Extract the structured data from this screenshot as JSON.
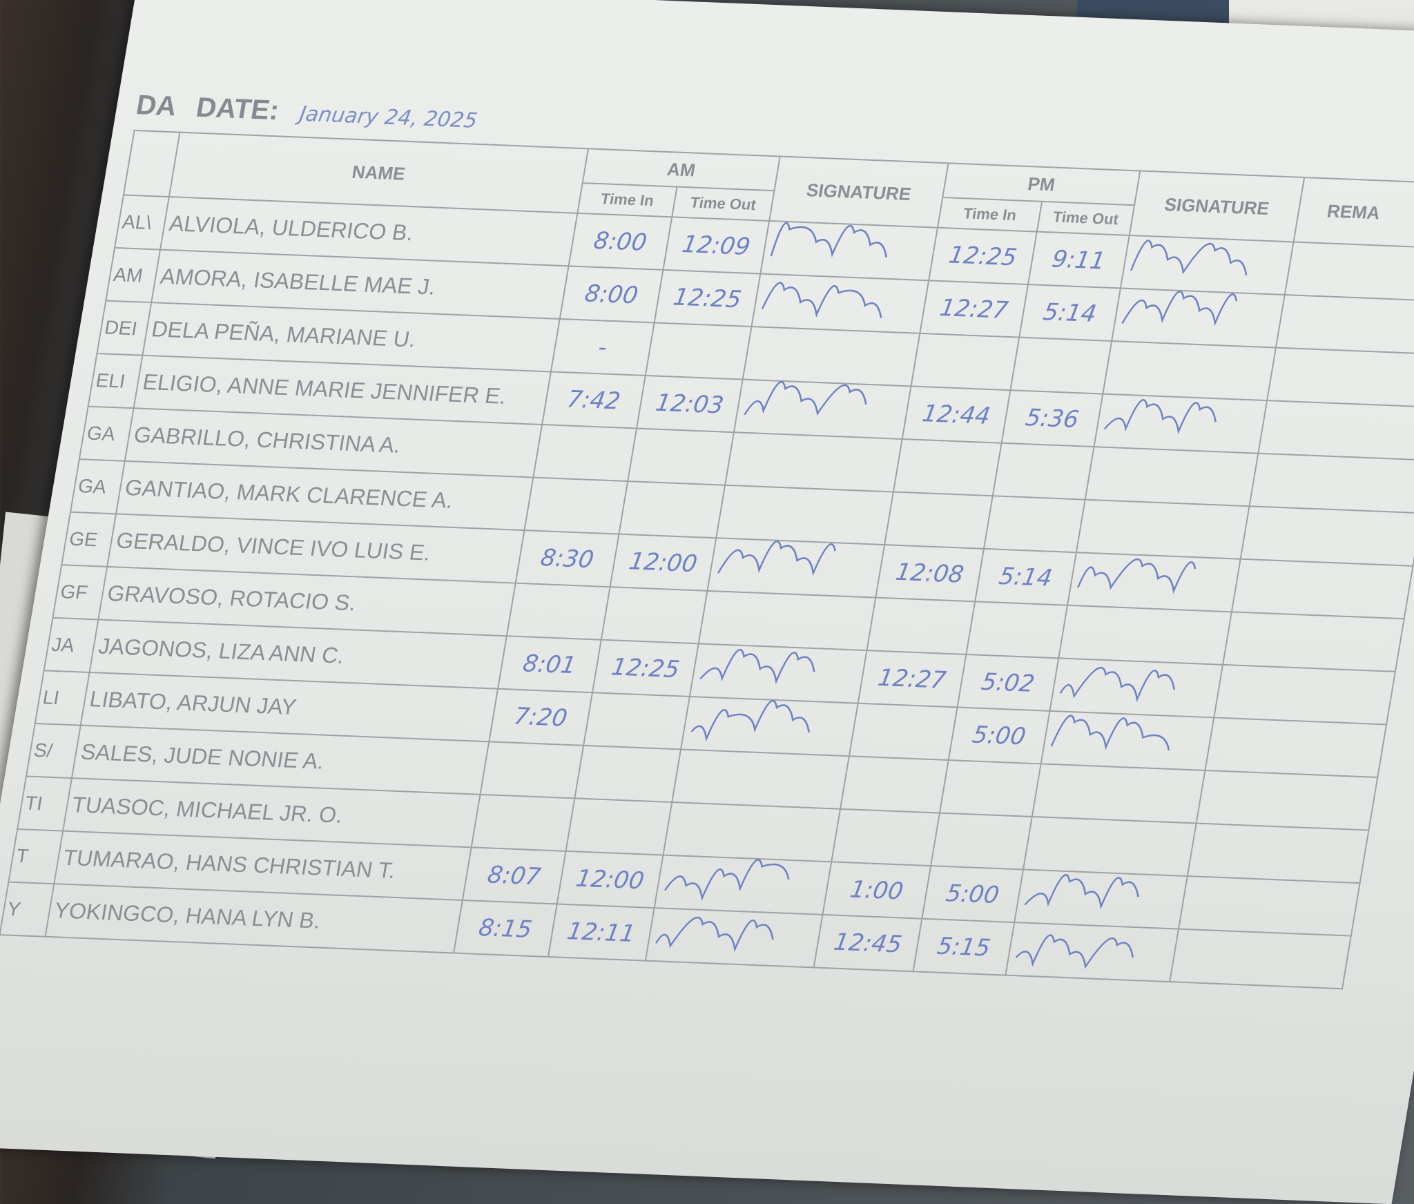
{
  "sheet": {
    "date_tag": "DA",
    "date_label": "DATE:",
    "date_value": "January 24, 2025",
    "headers": {
      "name": "NAME",
      "am": "AM",
      "pm": "PM",
      "time_in": "Time In",
      "time_out": "Time Out",
      "signature": "SIGNATURE",
      "remarks": "REMA"
    },
    "ink_color": "#6f82c4",
    "rows": [
      {
        "initials": "AL\\",
        "name": "ALVIOLA, ULDERICO B.",
        "am_in": "8:00",
        "am_out": "12:09",
        "am_signed": true,
        "pm_in": "12:25",
        "pm_out": "9:11",
        "pm_signed": true
      },
      {
        "initials": "AM",
        "name": "AMORA, ISABELLE MAE J.",
        "am_in": "8:00",
        "am_out": "12:25",
        "am_signed": true,
        "pm_in": "12:27",
        "pm_out": "5:14",
        "pm_signed": true
      },
      {
        "initials": "DEI",
        "name": "DELA PEÑA, MARIANE U.",
        "am_in": "-",
        "am_out": "",
        "am_signed": false,
        "pm_in": "",
        "pm_out": "",
        "pm_signed": false
      },
      {
        "initials": "ELI",
        "name": "ELIGIO, ANNE MARIE JENNIFER E.",
        "am_in": "7:42",
        "am_out": "12:03",
        "am_signed": true,
        "pm_in": "12:44",
        "pm_out": "5:36",
        "pm_signed": true
      },
      {
        "initials": "GA",
        "name": "GABRILLO, CHRISTINA A.",
        "am_in": "",
        "am_out": "",
        "am_signed": false,
        "pm_in": "",
        "pm_out": "",
        "pm_signed": false
      },
      {
        "initials": "GA",
        "name": "GANTIAO, MARK CLARENCE A.",
        "am_in": "",
        "am_out": "",
        "am_signed": false,
        "pm_in": "",
        "pm_out": "",
        "pm_signed": false
      },
      {
        "initials": "GE",
        "name": "GERALDO, VINCE IVO LUIS E.",
        "am_in": "8:30",
        "am_out": "12:00",
        "am_signed": true,
        "pm_in": "12:08",
        "pm_out": "5:14",
        "pm_signed": true
      },
      {
        "initials": "GF",
        "name": "GRAVOSO, ROTACIO S.",
        "am_in": "",
        "am_out": "",
        "am_signed": false,
        "pm_in": "",
        "pm_out": "",
        "pm_signed": false
      },
      {
        "initials": "JA",
        "name": "JAGONOS, LIZA ANN C.",
        "am_in": "8:01",
        "am_out": "12:25",
        "am_signed": true,
        "pm_in": "12:27",
        "pm_out": "5:02",
        "pm_signed": true
      },
      {
        "initials": "LI",
        "name": "LIBATO, ARJUN JAY",
        "am_in": "7:20",
        "am_out": "",
        "am_signed": true,
        "pm_in": "",
        "pm_out": "5:00",
        "pm_signed": true
      },
      {
        "initials": "S/",
        "name": "SALES, JUDE NONIE A.",
        "am_in": "",
        "am_out": "",
        "am_signed": false,
        "pm_in": "",
        "pm_out": "",
        "pm_signed": false
      },
      {
        "initials": "TI",
        "name": "TUASOC, MICHAEL JR. O.",
        "am_in": "",
        "am_out": "",
        "am_signed": false,
        "pm_in": "",
        "pm_out": "",
        "pm_signed": false
      },
      {
        "initials": "T",
        "name": "TUMARAO, HANS CHRISTIAN T.",
        "am_in": "8:07",
        "am_out": "12:00",
        "am_signed": true,
        "pm_in": "1:00",
        "pm_out": "5:00",
        "pm_signed": true
      },
      {
        "initials": "Y",
        "name": "YOKINGCO, HANA LYN B.",
        "am_in": "8:15",
        "am_out": "12:11",
        "am_signed": true,
        "pm_in": "12:45",
        "pm_out": "5:15",
        "pm_signed": true
      }
    ]
  }
}
